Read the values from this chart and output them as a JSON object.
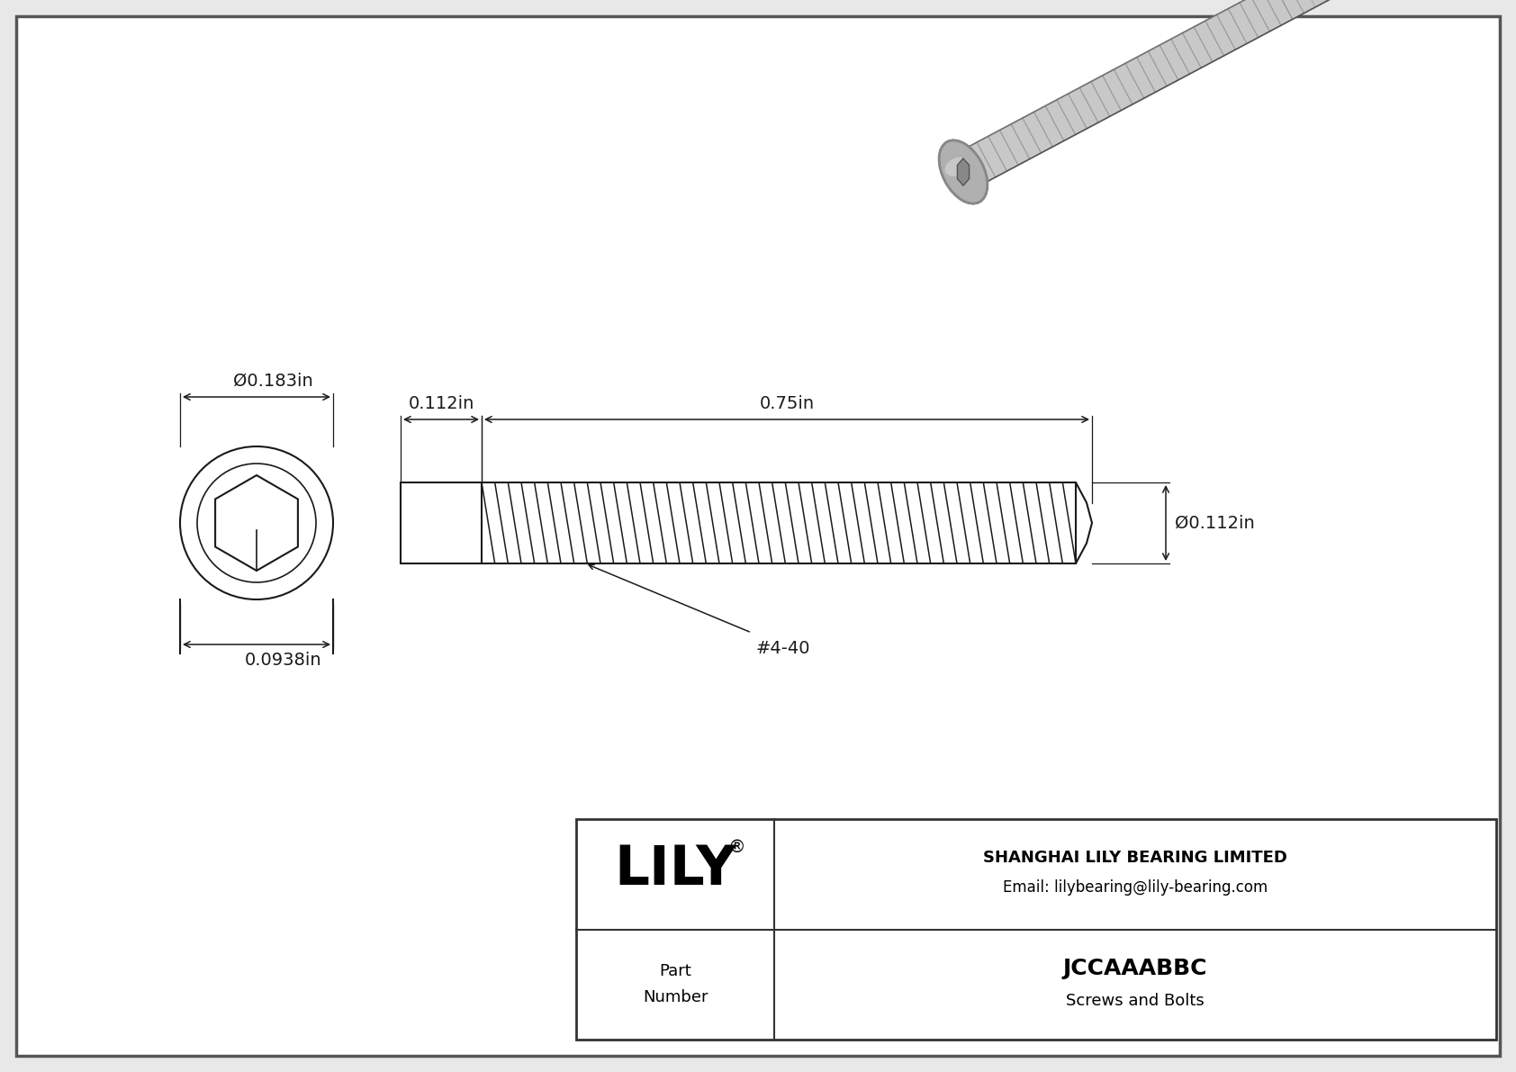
{
  "bg_color": "#e8e8e8",
  "drawing_bg": "#ffffff",
  "line_color": "#1a1a1a",
  "title": "JCCAAABBC",
  "subtitle": "Screws and Bolts",
  "company": "SHANGHAI LILY BEARING LIMITED",
  "email": "Email: lilybearing@lily-bearing.com",
  "lily_text": "LILY",
  "part_label": "Part\nNumber",
  "dim_head_dia": "Ø0.183in",
  "dim_head_width": "0.0938in",
  "dim_shank_dia": "Ø0.112in",
  "dim_total_length": "0.75in",
  "dim_head_length": "0.112in",
  "thread_label": "#4-40",
  "screw3d_colors": {
    "body_light": "#d0d0d0",
    "body_mid": "#b0b0b0",
    "body_dark": "#909090",
    "head_light": "#c8c8c8",
    "head_dark": "#888888",
    "thread_line": "#808080"
  }
}
